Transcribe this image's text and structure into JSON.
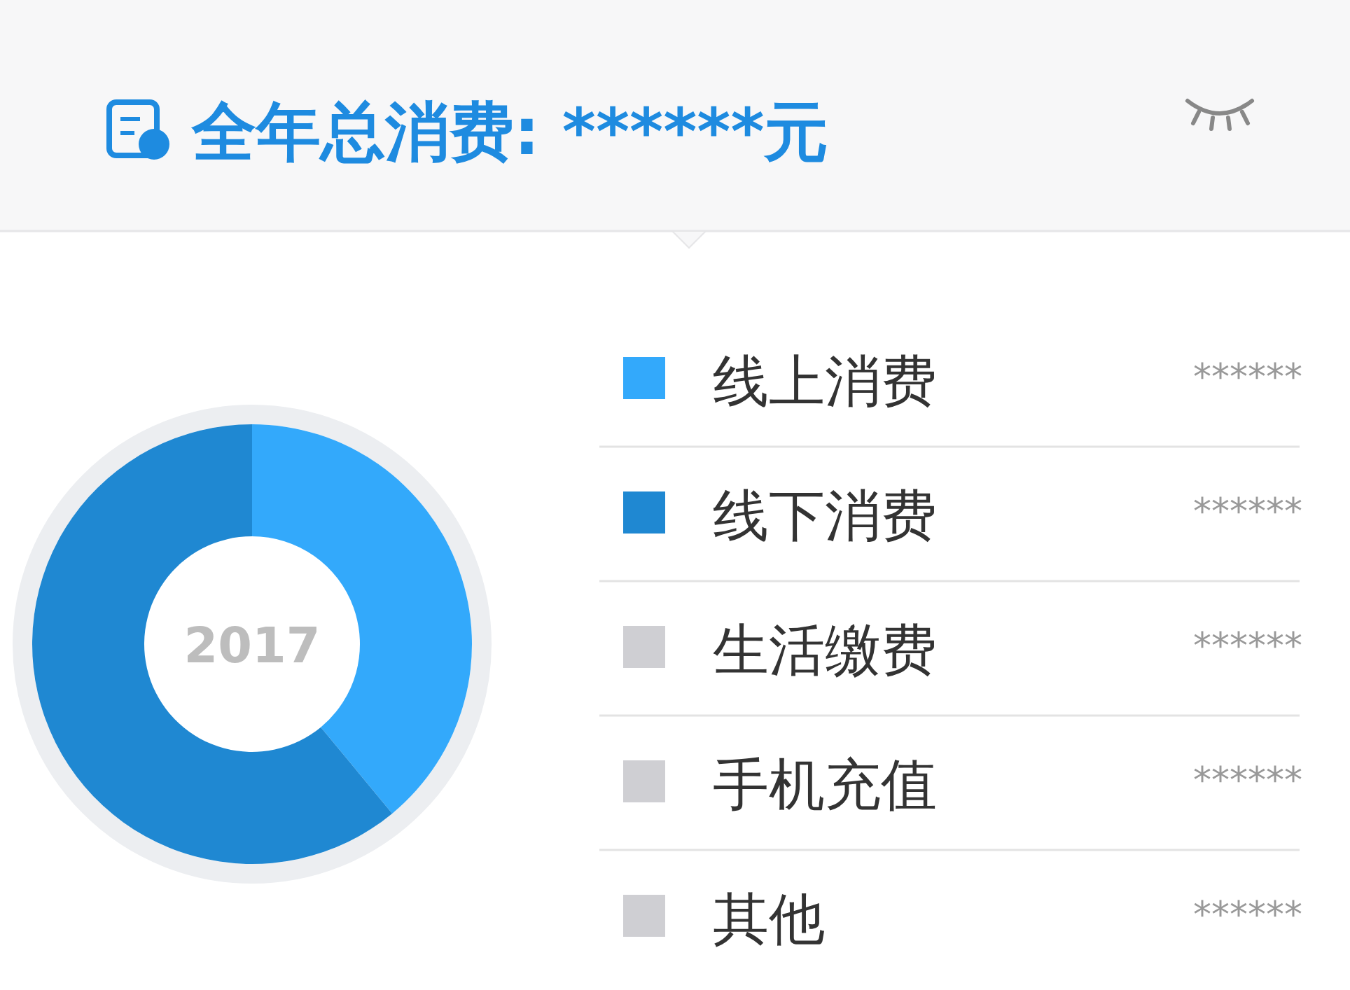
{
  "chart_data": {
    "type": "donut",
    "title": "全年总消费: ******元",
    "annotations": [
      "2017"
    ],
    "categories": [
      "线上消费",
      "线下消费",
      "生活缴费",
      "手机充值",
      "其他"
    ],
    "values": [
      39,
      61,
      0,
      0,
      0
    ],
    "colors": [
      "#33a9fb",
      "#1f88d2",
      "#cfcfd3",
      "#cfcfd3",
      "#cfcfd3"
    ],
    "value_labels": [
      "******",
      "******",
      "******",
      "******",
      "******"
    ],
    "legend": "right"
  }
}
